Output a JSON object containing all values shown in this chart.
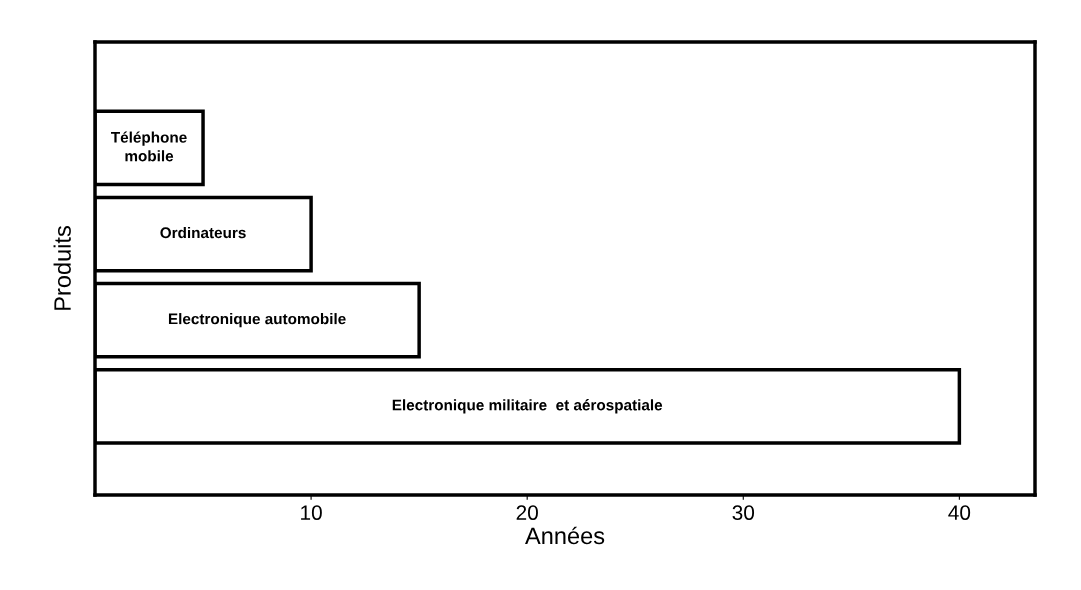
{
  "chart_data": {
    "type": "bar",
    "orientation": "horizontal",
    "xlabel": "Années",
    "ylabel": "Produits",
    "categories": [
      "Téléphone\nmobile",
      "Ordinateurs",
      "Electronique automobile",
      "Electronique militaire  et aérospatiale"
    ],
    "values": [
      5,
      10,
      15,
      40
    ],
    "color": "#ffffff",
    "xlim": [
      0,
      43.5
    ],
    "xticks": [
      10,
      20,
      30,
      40
    ],
    "grid": false
  }
}
